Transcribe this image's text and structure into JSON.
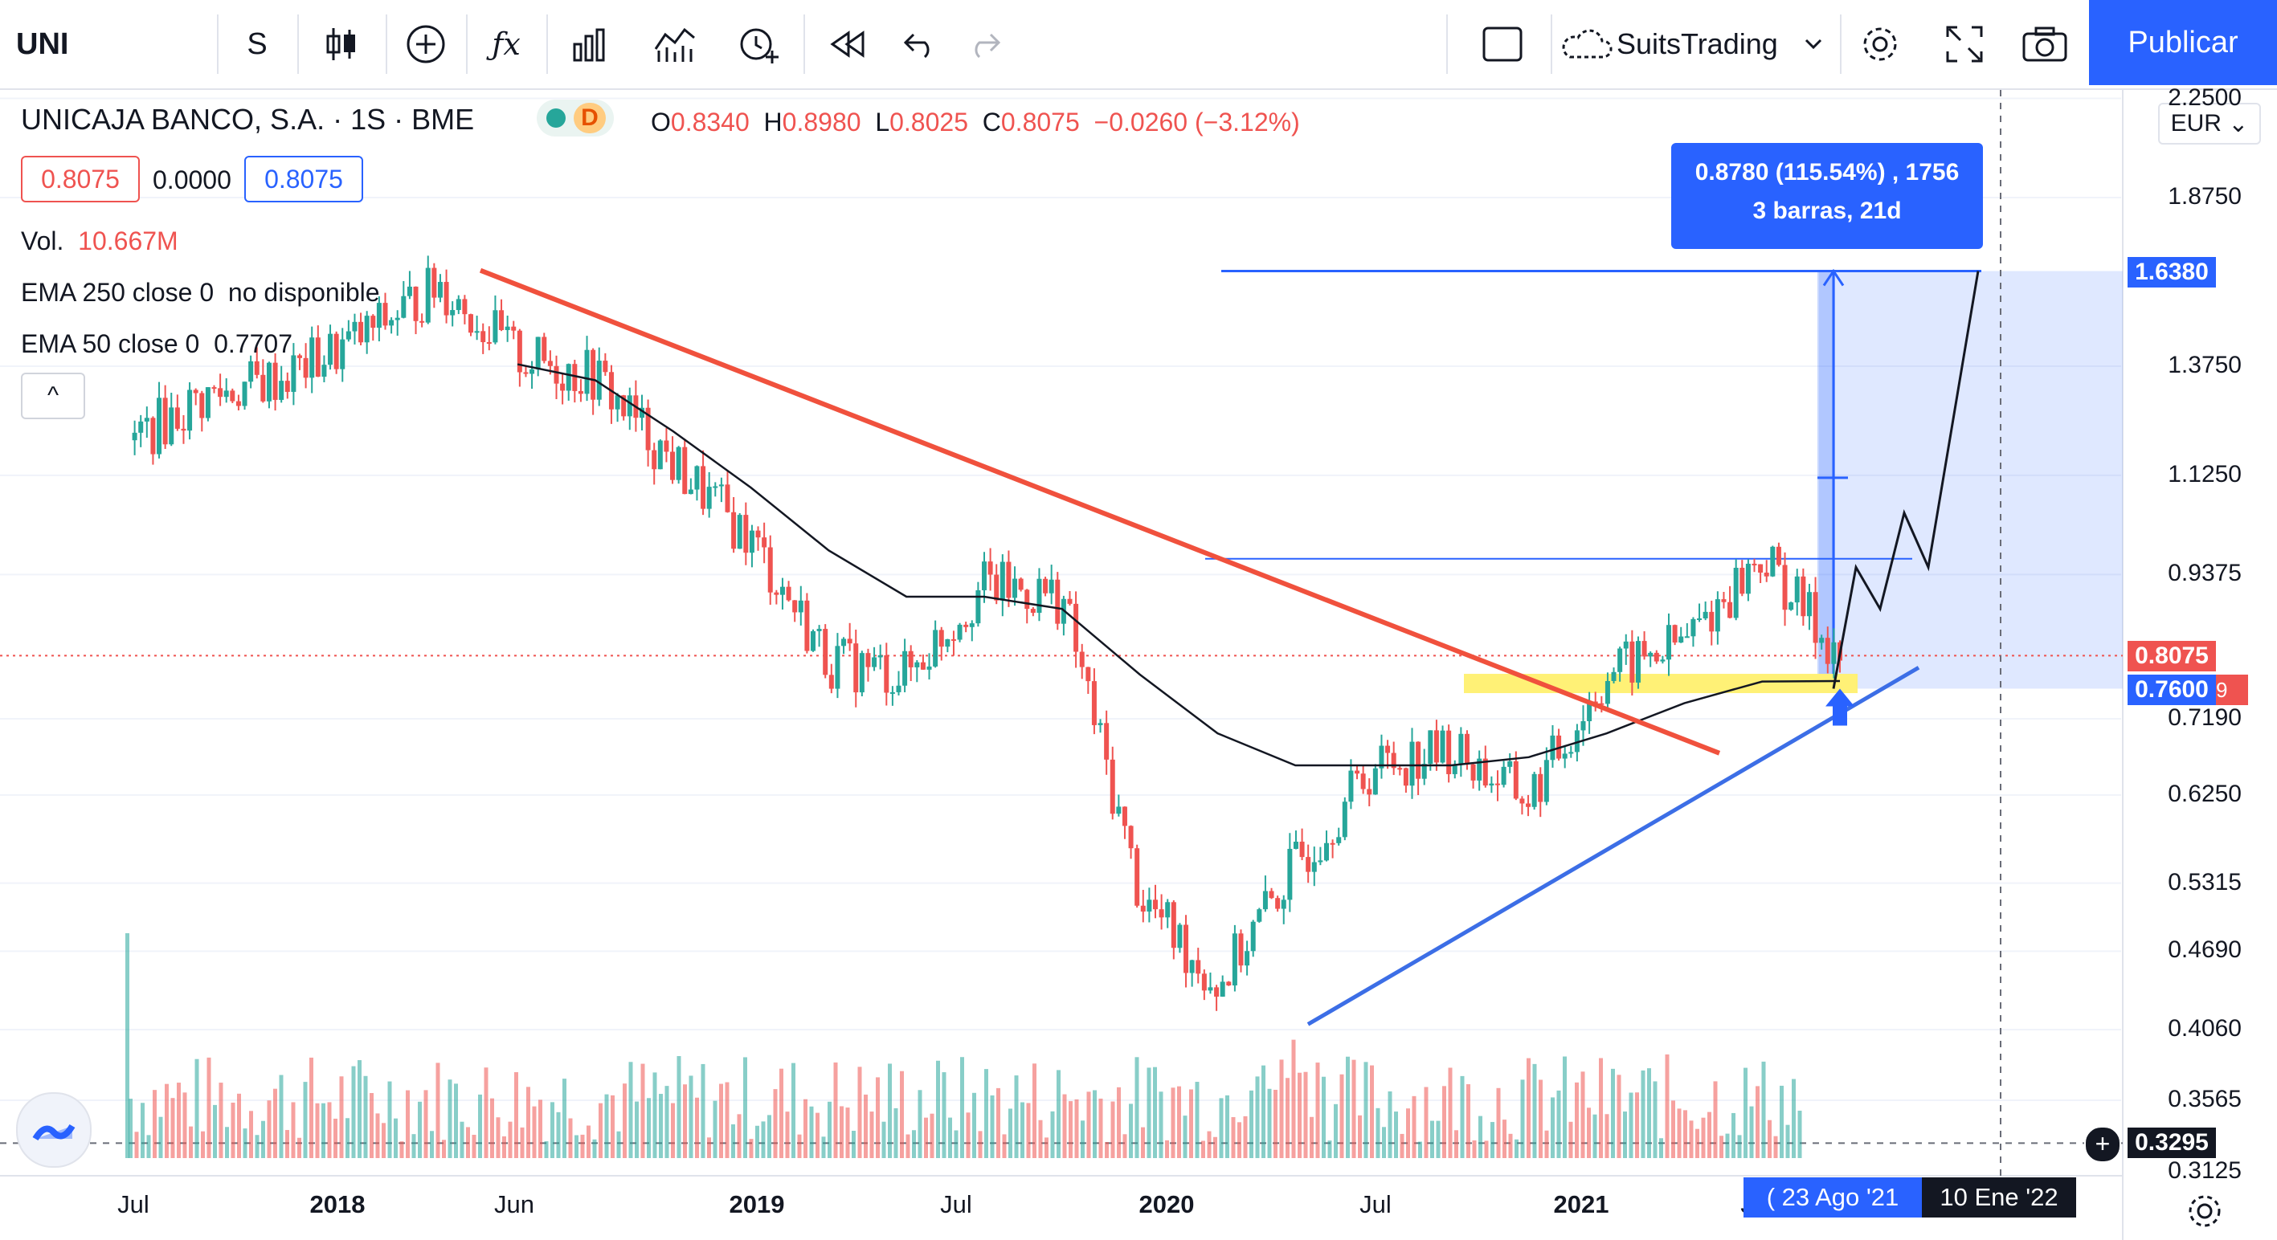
{
  "toolbar": {
    "symbol": "UNI",
    "interval": "S",
    "publish_label": "Publicar",
    "account_name": "SuitsTrading",
    "icons": [
      "candles-icon",
      "add-icon",
      "indicators-icon",
      "templates-icon",
      "compare-icon",
      "alert-icon",
      "replay-icon",
      "undo-icon",
      "redo-icon",
      "layout-icon",
      "cloud-icon",
      "settings-icon",
      "fullscreen-icon",
      "snapshot-icon"
    ]
  },
  "legend": {
    "title": "UNICAJA BANCO, S.A. · 1S · BME",
    "dot_green": "•",
    "badge": "D",
    "o_label": "O",
    "o": "0.8340",
    "h_label": "H",
    "h": "0.8980",
    "l_label": "L",
    "l": "0.8025",
    "c_label": "C",
    "c": "0.8075",
    "change": "−0.0260 (−3.12%)",
    "bid": "0.8075",
    "spread": "0.0000",
    "ask": "0.8075",
    "vol_label": "Vol.",
    "vol": "10.667M",
    "ema250": "EMA 250 close 0",
    "ema250_val": "no disponible",
    "ema50": "EMA 50 close 0",
    "ema50_val": "0.7707",
    "collapse": "^"
  },
  "measure": {
    "line1": "0.8780 (115.54%) , 1756",
    "line2": "3 barras, 21d"
  },
  "price_axis": {
    "currency": "EUR",
    "ticks": [
      "2.2500",
      "1.8750",
      "1.3750",
      "1.1250",
      "0.9375",
      "0.7190",
      "0.6250",
      "0.5315",
      "0.4690",
      "0.4060",
      "0.3565",
      "0.3125"
    ],
    "label_target": "1.6380",
    "label_last": "0.8075",
    "label_support": "0.7600",
    "label_cursor": "0.3295",
    "label_partial": "9"
  },
  "time_axis": {
    "ticks": [
      "Jul",
      "2018",
      "Jun",
      "2019",
      "Jul",
      "2020",
      "Jul",
      "2021",
      "J"
    ],
    "label_cursor1": "( 23 Ago '21",
    "label_cursor2": "10 Ene '22"
  },
  "colors": {
    "up": "#26a69a",
    "down": "#ef5350",
    "trendline_down": "#f0513d",
    "trendline_up": "#3c6ee6",
    "zone": "#fff176",
    "measure": "#2962ff"
  },
  "chart_data": {
    "type": "candlestick",
    "symbol": "UNICAJA BANCO, S.A.",
    "interval": "1S",
    "exchange": "BME",
    "currency": "EUR",
    "scale": "log",
    "ylim": [
      0.31,
      2.3
    ],
    "x": [
      "2017-07",
      "2017-10",
      "2018-01",
      "2018-04",
      "2018-06",
      "2018-09",
      "2018-11",
      "2019-01",
      "2019-04",
      "2019-07",
      "2019-09",
      "2019-12",
      "2020-02",
      "2020-03",
      "2020-05",
      "2020-07",
      "2020-10",
      "2020-12",
      "2021-01",
      "2021-03",
      "2021-05",
      "2021-06",
      "2021-07"
    ],
    "close": [
      1.2,
      1.3,
      1.35,
      1.45,
      1.6,
      1.4,
      1.35,
      1.15,
      1.0,
      0.8,
      0.78,
      0.92,
      0.9,
      0.52,
      0.44,
      0.55,
      0.66,
      0.68,
      0.62,
      0.78,
      0.83,
      0.97,
      0.8075
    ],
    "ema50": [
      null,
      null,
      null,
      null,
      null,
      1.38,
      1.34,
      1.22,
      1.1,
      0.98,
      0.9,
      0.9,
      0.88,
      0.78,
      0.7,
      0.66,
      0.66,
      0.66,
      0.67,
      0.7,
      0.74,
      0.77,
      0.7707
    ],
    "annotations": {
      "target": 1.638,
      "resistance": 0.965,
      "support": 0.76,
      "last": 0.8075,
      "measure_change": "0.8780 (115.54%)",
      "projection": [
        0.76,
        0.95,
        0.88,
        1.05,
        0.95,
        1.638
      ]
    }
  }
}
